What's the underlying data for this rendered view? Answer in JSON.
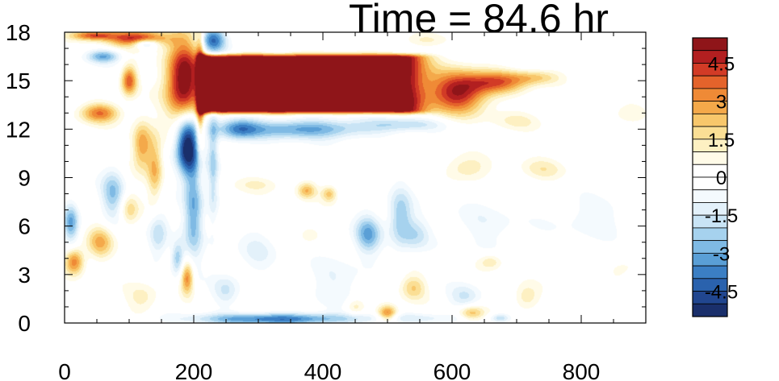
{
  "chart_data": {
    "type": "heatmap",
    "title": "Time = 84.6 hr",
    "xlabel": "",
    "ylabel": "",
    "xlim": [
      0,
      900
    ],
    "ylim": [
      0,
      18
    ],
    "x_ticks": [
      0,
      200,
      400,
      600,
      800
    ],
    "y_ticks": [
      0,
      3,
      6,
      9,
      12,
      15,
      18
    ],
    "colorbar": {
      "levels": [
        -5.5,
        -5,
        -4.5,
        -4,
        -3.5,
        -3,
        -2.5,
        -2,
        -1.5,
        -1,
        -0.5,
        0,
        0.5,
        1,
        1.5,
        2,
        2.5,
        3,
        3.5,
        4,
        4.5,
        5,
        5.5
      ],
      "colors": [
        "#1a2f6b",
        "#21468f",
        "#2a62ad",
        "#3b7fc4",
        "#5a9fd6",
        "#7fbae4",
        "#a6d2ee",
        "#c9e4f5",
        "#e3f1fa",
        "#f4fafe",
        "#ffffff",
        "#ffffff",
        "#fffbe8",
        "#fdf0c2",
        "#fbdf95",
        "#f8c76b",
        "#f4a94a",
        "#ef8a36",
        "#e4632b",
        "#d23b26",
        "#b21f20",
        "#8f1519"
      ],
      "tick_labels": [
        "4.5",
        "3",
        "1.5",
        "0",
        "-1.5",
        "-3",
        "-4.5"
      ],
      "tick_values": [
        4.5,
        3,
        1.5,
        0,
        -1.5,
        -3,
        -4.5
      ],
      "location": "right"
    },
    "features": [
      {
        "type": "box",
        "x": [
          215,
          520
        ],
        "y": [
          13.2,
          16.4
        ],
        "value": 6.0
      },
      {
        "type": "blob",
        "cx": 610,
        "cy": 14.3,
        "rx": 45,
        "ry": 1.3,
        "value": 5.0
      },
      {
        "type": "blob",
        "cx": 670,
        "cy": 14.9,
        "rx": 45,
        "ry": 0.7,
        "value": 3.2
      },
      {
        "type": "blob",
        "cx": 730,
        "cy": 15.2,
        "rx": 40,
        "ry": 0.45,
        "value": 2.0
      },
      {
        "type": "blob",
        "cx": 185,
        "cy": 15.0,
        "rx": 28,
        "ry": 2.5,
        "value": 6.0
      },
      {
        "type": "blob",
        "cx": 115,
        "cy": 17.6,
        "rx": 45,
        "ry": 0.5,
        "value": 5.0
      },
      {
        "type": "blob",
        "cx": 45,
        "cy": 17.8,
        "rx": 35,
        "ry": 0.3,
        "value": 4.0
      },
      {
        "type": "blob",
        "cx": 100,
        "cy": 15.0,
        "rx": 12,
        "ry": 0.9,
        "value": 4.0
      },
      {
        "type": "blob",
        "cx": 55,
        "cy": 13.0,
        "rx": 30,
        "ry": 0.6,
        "value": 3.5
      },
      {
        "type": "blob",
        "cx": 120,
        "cy": 11.0,
        "rx": 15,
        "ry": 1.5,
        "value": 3.0
      },
      {
        "type": "blob",
        "cx": 140,
        "cy": 9.5,
        "rx": 12,
        "ry": 2.0,
        "value": 2.5
      },
      {
        "type": "blob",
        "cx": 15,
        "cy": 3.8,
        "rx": 15,
        "ry": 0.8,
        "value": 3.5
      },
      {
        "type": "blob",
        "cx": 55,
        "cy": 5.0,
        "rx": 20,
        "ry": 1.0,
        "value": 2.5
      },
      {
        "type": "blob",
        "cx": 100,
        "cy": 7.0,
        "rx": 15,
        "ry": 1.0,
        "value": 1.8
      },
      {
        "type": "blob",
        "cx": 190,
        "cy": 2.8,
        "rx": 10,
        "ry": 1.0,
        "value": 3.5
      },
      {
        "type": "blob",
        "cx": 210,
        "cy": 14.5,
        "rx": 6,
        "ry": 3.5,
        "value": 4.0
      },
      {
        "type": "blob",
        "cx": 125,
        "cy": 17.3,
        "rx": 20,
        "ry": 0.3,
        "value": -3.5
      },
      {
        "type": "blob",
        "cx": 60,
        "cy": 16.5,
        "rx": 25,
        "ry": 0.4,
        "value": -3.0
      },
      {
        "type": "blob",
        "cx": 230,
        "cy": 17.5,
        "rx": 20,
        "ry": 0.8,
        "value": -4.0
      },
      {
        "type": "blob",
        "cx": 370,
        "cy": 12.0,
        "rx": 110,
        "ry": 0.6,
        "value": -3.2
      },
      {
        "type": "blob",
        "cx": 530,
        "cy": 12.3,
        "rx": 60,
        "ry": 0.4,
        "value": -1.6
      },
      {
        "type": "blob",
        "cx": 270,
        "cy": 12.0,
        "rx": 30,
        "ry": 0.7,
        "value": -2.5
      },
      {
        "type": "blob",
        "cx": 190,
        "cy": 11.0,
        "rx": 18,
        "ry": 1.8,
        "value": -6.0
      },
      {
        "type": "blob",
        "cx": 200,
        "cy": 7.0,
        "rx": 15,
        "ry": 3.0,
        "value": -3.0
      },
      {
        "type": "blob",
        "cx": 230,
        "cy": 10.0,
        "rx": 8,
        "ry": 4.0,
        "value": -2.0
      },
      {
        "type": "blob",
        "cx": 10,
        "cy": 6.2,
        "rx": 12,
        "ry": 1.2,
        "value": -3.0
      },
      {
        "type": "blob",
        "cx": 75,
        "cy": 8.0,
        "rx": 18,
        "ry": 1.5,
        "value": -2.5
      },
      {
        "type": "blob",
        "cx": 145,
        "cy": 5.5,
        "rx": 15,
        "ry": 1.5,
        "value": -2.0
      },
      {
        "type": "blob",
        "cx": 175,
        "cy": 4.0,
        "rx": 10,
        "ry": 1.0,
        "value": -2.5
      },
      {
        "type": "blob",
        "cx": 470,
        "cy": 5.5,
        "rx": 20,
        "ry": 1.2,
        "value": -3.0
      },
      {
        "type": "blob",
        "cx": 520,
        "cy": 6.5,
        "rx": 18,
        "ry": 1.8,
        "value": -2.5
      },
      {
        "type": "blob",
        "cx": 545,
        "cy": 5.5,
        "rx": 20,
        "ry": 1.0,
        "value": -1.6
      },
      {
        "type": "blob",
        "cx": 300,
        "cy": 4.5,
        "rx": 30,
        "ry": 1.5,
        "value": -1.0
      },
      {
        "type": "blob",
        "cx": 650,
        "cy": 6.0,
        "rx": 60,
        "ry": 1.5,
        "value": -0.8
      },
      {
        "type": "blob",
        "cx": 820,
        "cy": 6.5,
        "rx": 60,
        "ry": 1.2,
        "value": -0.9
      },
      {
        "type": "blob",
        "cx": 420,
        "cy": 2.5,
        "rx": 45,
        "ry": 1.5,
        "value": -1.0
      },
      {
        "type": "blob",
        "cx": 620,
        "cy": 1.6,
        "rx": 25,
        "ry": 0.8,
        "value": -1.5
      },
      {
        "type": "blob",
        "cx": 330,
        "cy": 0.25,
        "rx": 120,
        "ry": 0.35,
        "value": -4.0
      },
      {
        "type": "blob",
        "cx": 560,
        "cy": 0.3,
        "rx": 80,
        "ry": 0.3,
        "value": -1.0
      },
      {
        "type": "blob",
        "cx": 675,
        "cy": 0.3,
        "rx": 15,
        "ry": 0.3,
        "value": -2.0
      },
      {
        "type": "blob",
        "cx": 375,
        "cy": 8.2,
        "rx": 15,
        "ry": 0.5,
        "value": 2.5
      },
      {
        "type": "blob",
        "cx": 410,
        "cy": 8.0,
        "rx": 12,
        "ry": 0.5,
        "value": 2.2
      },
      {
        "type": "blob",
        "cx": 300,
        "cy": 8.6,
        "rx": 40,
        "ry": 0.5,
        "value": 1.0
      },
      {
        "type": "blob",
        "cx": 620,
        "cy": 9.5,
        "rx": 35,
        "ry": 0.8,
        "value": 1.5
      },
      {
        "type": "blob",
        "cx": 740,
        "cy": 9.5,
        "rx": 35,
        "ry": 0.7,
        "value": 1.2
      },
      {
        "type": "blob",
        "cx": 700,
        "cy": 12.5,
        "rx": 40,
        "ry": 0.6,
        "value": 1.0
      },
      {
        "type": "blob",
        "cx": 870,
        "cy": 12.8,
        "rx": 30,
        "ry": 0.6,
        "value": 0.8
      },
      {
        "type": "blob",
        "cx": 560,
        "cy": 17.5,
        "rx": 40,
        "ry": 0.4,
        "value": 1.0
      },
      {
        "type": "blob",
        "cx": 500,
        "cy": 0.6,
        "rx": 15,
        "ry": 0.5,
        "value": 3.5
      },
      {
        "type": "blob",
        "cx": 630,
        "cy": 0.6,
        "rx": 20,
        "ry": 0.5,
        "value": 2.5
      },
      {
        "type": "blob",
        "cx": 540,
        "cy": 2.2,
        "rx": 20,
        "ry": 0.8,
        "value": 2.0
      },
      {
        "type": "blob",
        "cx": 660,
        "cy": 3.8,
        "rx": 20,
        "ry": 0.5,
        "value": 1.6
      },
      {
        "type": "blob",
        "cx": 715,
        "cy": 1.6,
        "rx": 20,
        "ry": 0.8,
        "value": 1.5
      },
      {
        "type": "blob",
        "cx": 450,
        "cy": 1.0,
        "rx": 15,
        "ry": 0.5,
        "value": 1.5
      },
      {
        "type": "blob",
        "cx": 120,
        "cy": 1.5,
        "rx": 25,
        "ry": 1.0,
        "value": 1.2
      },
      {
        "type": "blob",
        "cx": 860,
        "cy": 3.0,
        "rx": 30,
        "ry": 1.0,
        "value": 0.8
      },
      {
        "type": "blob",
        "cx": 380,
        "cy": 5.5,
        "rx": 15,
        "ry": 0.5,
        "value": 1.0
      },
      {
        "type": "blob",
        "cx": 250,
        "cy": 2.0,
        "rx": 20,
        "ry": 1.0,
        "value": -1.5
      }
    ]
  }
}
